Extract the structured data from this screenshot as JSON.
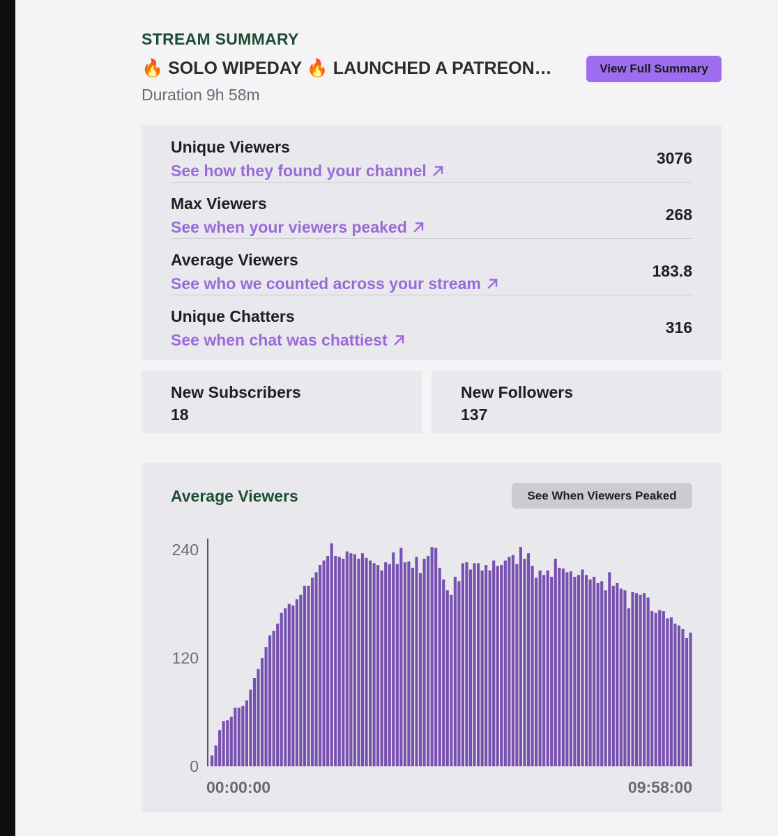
{
  "header": {
    "section_label": "STREAM SUMMARY",
    "stream_title": "🔥 SOLO WIPEDAY 🔥 LAUNCHED A PATREON…",
    "duration_label": "Duration",
    "duration_value": "9h 58m",
    "view_full_summary_label": "View Full Summary"
  },
  "stats": [
    {
      "name": "Unique Viewers",
      "link": "See how they found your channel",
      "value": "3076"
    },
    {
      "name": "Max Viewers",
      "link": "See when your viewers peaked",
      "value": "268"
    },
    {
      "name": "Average Viewers",
      "link": "See who we counted across your stream",
      "value": "183.8"
    },
    {
      "name": "Unique Chatters",
      "link": "See when chat was chattiest",
      "value": "316"
    }
  ],
  "new_subscribers": {
    "label": "New Subscribers",
    "value": "18"
  },
  "new_followers": {
    "label": "New Followers",
    "value": "137"
  },
  "chart_section": {
    "title": "Average Viewers",
    "button_label": "See When Viewers Peaked"
  },
  "colors": {
    "accent_purple": "#9d6cf0",
    "link_purple": "#9a6ad8",
    "bar_purple": "#7750b0",
    "heading_green": "#1e4d33"
  },
  "chart_data": {
    "type": "bar",
    "title": "Average Viewers",
    "xlabel": "",
    "ylabel": "",
    "ylim": [
      0,
      240
    ],
    "yticks": [
      "240",
      "120",
      "0"
    ],
    "x_start_label": "00:00:00",
    "x_end_label": "09:58:00",
    "grid": false,
    "values": [
      12,
      23,
      40,
      50,
      51,
      55,
      65,
      65,
      67,
      73,
      85,
      98,
      108,
      120,
      132,
      145,
      150,
      158,
      170,
      175,
      180,
      178,
      185,
      190,
      200,
      200,
      209,
      215,
      223,
      228,
      233,
      247,
      233,
      232,
      230,
      238,
      236,
      235,
      230,
      236,
      231,
      228,
      225,
      223,
      217,
      226,
      224,
      237,
      224,
      242,
      226,
      227,
      220,
      232,
      214,
      230,
      233,
      243,
      242,
      220,
      207,
      195,
      190,
      210,
      205,
      225,
      226,
      218,
      225,
      225,
      217,
      223,
      217,
      228,
      222,
      223,
      228,
      232,
      234,
      224,
      243,
      230,
      236,
      222,
      209,
      217,
      212,
      217,
      210,
      230,
      220,
      219,
      215,
      216,
      210,
      212,
      218,
      212,
      207,
      210,
      203,
      205,
      195,
      215,
      200,
      203,
      197,
      195,
      175,
      193,
      192,
      190,
      192,
      187,
      172,
      170,
      173,
      172,
      164,
      165,
      158,
      156,
      152,
      142,
      148
    ]
  }
}
